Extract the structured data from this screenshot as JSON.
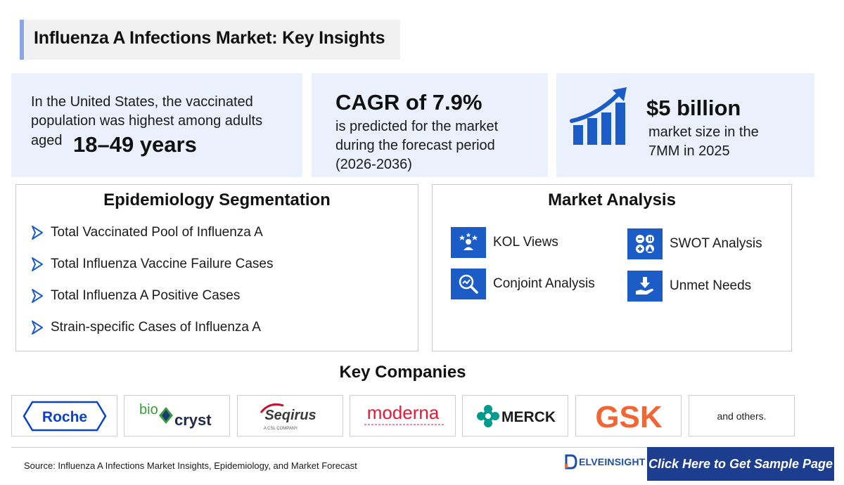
{
  "title": "Influenza A Infections Market: Key Insights",
  "stats": {
    "vaccinated": {
      "text": "In the United States, the vaccinated population was highest among adults",
      "aged": "aged",
      "highlight": "18–49 years"
    },
    "cagr": {
      "highlight": "CAGR of 7.9%",
      "text": "is predicted for the market during the forecast period (2026-2036)"
    },
    "market_size": {
      "highlight": "$5 billion",
      "text": "market size in the 7MM in 2025",
      "icon": "growth-chart-icon"
    }
  },
  "epidemiology": {
    "title": "Epidemiology Segmentation",
    "items": [
      "Total Vaccinated Pool of Influenza A",
      "Total Influenza Vaccine Failure Cases",
      "Total Influenza A Positive Cases",
      "Strain-specific Cases of Influenza A"
    ]
  },
  "market_analysis": {
    "title": "Market Analysis",
    "items": [
      {
        "label": "KOL Views",
        "icon": "kol-views-icon"
      },
      {
        "label": "SWOT Analysis",
        "icon": "swot-icon"
      },
      {
        "label": "Conjoint Analysis",
        "icon": "conjoint-analysis-icon"
      },
      {
        "label": "Unmet Needs",
        "icon": "unmet-needs-icon"
      }
    ]
  },
  "key_companies": {
    "title": "Key Companies",
    "logos": {
      "roche": "Roche",
      "biocryst_a": "bio",
      "biocryst_b": "cryst",
      "seqirus": "Seqirus",
      "seqirus_sub": "A CSL COMPANY",
      "moderna": "moderna",
      "merck": "MERCK",
      "gsk": "GSK"
    },
    "others": "and others."
  },
  "footer": {
    "source": "Source: Influenza A Infections Market Insights, Epidemiology, and Market Forecast",
    "brand": "ELVEINSIGHT",
    "cta": "Click Here to Get Sample Page"
  },
  "colors": {
    "accent_blue": "#1c5cc7",
    "panel_bg": "#eaf1fc",
    "cta_bg": "#1d3d8f",
    "roche": "#0b41cd",
    "gsk": "#f36633",
    "merck": "#009a8f",
    "moderna": "#e31937"
  }
}
